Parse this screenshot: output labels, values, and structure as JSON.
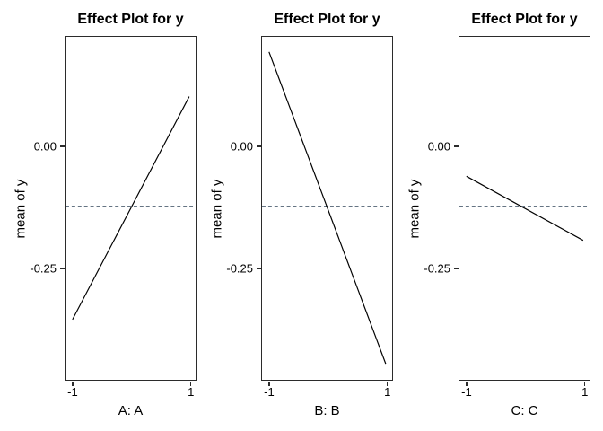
{
  "figure": {
    "background": "#ffffff",
    "frame_color": "#2b2b2b",
    "text_color": "#000000"
  },
  "chart_data": [
    {
      "type": "line",
      "title": "Effect Plot for y",
      "xlabel": "A: A",
      "ylabel": "mean of y",
      "x": [
        -1,
        1
      ],
      "y": [
        -0.358,
        0.101
      ],
      "xlim": [
        -1.12,
        1.11
      ],
      "ylim": [
        -0.482,
        0.224
      ],
      "xticks": [
        -1,
        1
      ],
      "xtick_labels": [
        "-1",
        "1"
      ],
      "yticks": [
        0,
        -0.25
      ],
      "ytick_labels": [
        "0.00",
        "-0.25"
      ],
      "grid": false,
      "legend": "none",
      "line_color": "#000000",
      "reference_line": {
        "y": -0.125,
        "style": "dashed",
        "color": "#32465a"
      }
    },
    {
      "type": "line",
      "title": "Effect Plot for y",
      "xlabel": "B: B",
      "ylabel": "mean of y",
      "x": [
        -1,
        1
      ],
      "y": [
        0.193,
        -0.449
      ],
      "xlim": [
        -1.12,
        1.11
      ],
      "ylim": [
        -0.482,
        0.224
      ],
      "xticks": [
        -1,
        1
      ],
      "xtick_labels": [
        "-1",
        "1"
      ],
      "yticks": [
        0,
        -0.25
      ],
      "ytick_labels": [
        "0.00",
        "-0.25"
      ],
      "grid": false,
      "legend": "none",
      "line_color": "#000000",
      "reference_line": {
        "y": -0.125,
        "style": "dashed",
        "color": "#32465a"
      }
    },
    {
      "type": "line",
      "title": "Effect Plot for y",
      "xlabel": "C: C",
      "ylabel": "mean of y",
      "x": [
        -1,
        1
      ],
      "y": [
        -0.063,
        -0.195
      ],
      "xlim": [
        -1.12,
        1.11
      ],
      "ylim": [
        -0.482,
        0.224
      ],
      "xticks": [
        -1,
        1
      ],
      "xtick_labels": [
        "-1",
        "1"
      ],
      "yticks": [
        0,
        -0.25
      ],
      "ytick_labels": [
        "0.00",
        "-0.25"
      ],
      "grid": false,
      "legend": "none",
      "line_color": "#000000",
      "reference_line": {
        "y": -0.125,
        "style": "dashed",
        "color": "#32465a"
      }
    }
  ]
}
